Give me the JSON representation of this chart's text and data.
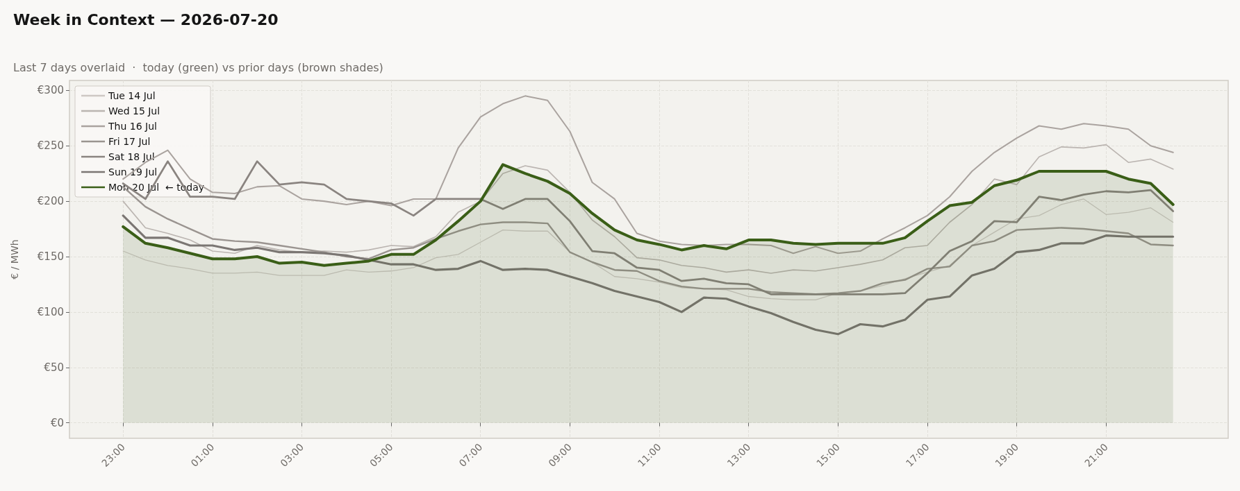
{
  "chart_data": {
    "type": "line",
    "title": "Week in Context — 2026-07-20",
    "subtitle": "Last 7 days overlaid  ·  today (green) vs prior days (brown shades)",
    "ylabel": "€ / MWh",
    "x": [
      "2026-07-19T23:00",
      "2026-07-19T23:30",
      "2026-07-20T00:00",
      "2026-07-20T00:30",
      "2026-07-20T01:00",
      "2026-07-20T01:30",
      "2026-07-20T02:00",
      "2026-07-20T02:30",
      "2026-07-20T03:00",
      "2026-07-20T03:30",
      "2026-07-20T04:00",
      "2026-07-20T04:30",
      "2026-07-20T05:00",
      "2026-07-20T05:30",
      "2026-07-20T06:00",
      "2026-07-20T06:30",
      "2026-07-20T07:00",
      "2026-07-20T07:30",
      "2026-07-20T08:00",
      "2026-07-20T08:30",
      "2026-07-20T09:00",
      "2026-07-20T09:30",
      "2026-07-20T10:00",
      "2026-07-20T10:30",
      "2026-07-20T11:00",
      "2026-07-20T11:30",
      "2026-07-20T12:00",
      "2026-07-20T12:30",
      "2026-07-20T13:00",
      "2026-07-20T13:30",
      "2026-07-20T14:00",
      "2026-07-20T14:30",
      "2026-07-20T15:00",
      "2026-07-20T15:30",
      "2026-07-20T16:00",
      "2026-07-20T16:30",
      "2026-07-20T17:00",
      "2026-07-20T17:30",
      "2026-07-20T18:00",
      "2026-07-20T18:30",
      "2026-07-20T19:00",
      "2026-07-20T19:30",
      "2026-07-20T20:00",
      "2026-07-20T20:30",
      "2026-07-20T21:00",
      "2026-07-20T21:30",
      "2026-07-20T22:00",
      "2026-07-20T22:30"
    ],
    "xlim": [
      "2026-07-19T21:48",
      "2026-07-20T23:44"
    ],
    "xticks": [
      {
        "value": "2026-07-19T23:00",
        "label": "23:00"
      },
      {
        "value": "2026-07-20T01:00",
        "label": "01:00"
      },
      {
        "value": "2026-07-20T03:00",
        "label": "03:00"
      },
      {
        "value": "2026-07-20T05:00",
        "label": "05:00"
      },
      {
        "value": "2026-07-20T07:00",
        "label": "07:00"
      },
      {
        "value": "2026-07-20T09:00",
        "label": "09:00"
      },
      {
        "value": "2026-07-20T11:00",
        "label": "11:00"
      },
      {
        "value": "2026-07-20T13:00",
        "label": "13:00"
      },
      {
        "value": "2026-07-20T15:00",
        "label": "15:00"
      },
      {
        "value": "2026-07-20T17:00",
        "label": "17:00"
      },
      {
        "value": "2026-07-20T19:00",
        "label": "19:00"
      },
      {
        "value": "2026-07-20T21:00",
        "label": "21:00"
      }
    ],
    "ylim": [
      -14,
      309
    ],
    "yticks": [
      {
        "value": 0,
        "label": "€0"
      },
      {
        "value": 50,
        "label": "€50"
      },
      {
        "value": 100,
        "label": "€100"
      },
      {
        "value": 150,
        "label": "€150"
      },
      {
        "value": 200,
        "label": "€200"
      },
      {
        "value": 250,
        "label": "€250"
      },
      {
        "value": 300,
        "label": "€300"
      }
    ],
    "grid": true,
    "legend": "top left",
    "marker": "none",
    "line_style": "solid",
    "series": [
      {
        "name": "Tue 14 Jul",
        "color": "#cdc8c4",
        "values": [
          155,
          147,
          142,
          139,
          135,
          135,
          136,
          133,
          133,
          133,
          138,
          136,
          137,
          140,
          149,
          152,
          163,
          174,
          173,
          173,
          154,
          145,
          132,
          130,
          127,
          122,
          121,
          120,
          114,
          112,
          111,
          111,
          117,
          119,
          124,
          130,
          136,
          142,
          160,
          172,
          184,
          187,
          197,
          202,
          188,
          190,
          194,
          181
        ]
      },
      {
        "name": "Wed 15 Jul",
        "color": "#bbb5b1",
        "values": [
          200,
          176,
          171,
          165,
          155,
          153,
          160,
          156,
          154,
          155,
          154,
          156,
          160,
          159,
          168,
          190,
          200,
          225,
          232,
          228,
          208,
          183,
          168,
          149,
          147,
          142,
          140,
          136,
          138,
          135,
          138,
          137,
          140,
          143,
          147,
          158,
          160,
          181,
          197,
          220,
          215,
          240,
          249,
          248,
          251,
          235,
          238,
          229
        ]
      },
      {
        "name": "Thu 16 Jul",
        "color": "#aaa39f",
        "values": [
          220,
          235,
          246,
          220,
          208,
          207,
          213,
          214,
          202,
          200,
          197,
          200,
          196,
          202,
          202,
          248,
          276,
          288,
          295,
          291,
          263,
          217,
          202,
          171,
          164,
          161,
          160,
          161,
          161,
          160,
          153,
          159,
          153,
          155,
          166,
          176,
          187,
          204,
          227,
          244,
          257,
          268,
          265,
          270,
          268,
          265,
          250,
          244
        ]
      },
      {
        "name": "Fri 17 Jul",
        "color": "#9a9490",
        "values": [
          213,
          195,
          184,
          175,
          166,
          164,
          163,
          160,
          157,
          154,
          150,
          148,
          156,
          158,
          166,
          173,
          179,
          181,
          181,
          180,
          154,
          145,
          138,
          137,
          128,
          123,
          121,
          121,
          121,
          118,
          117,
          116,
          117,
          119,
          126,
          129,
          139,
          141,
          160,
          164,
          174,
          175,
          176,
          175,
          173,
          171,
          161,
          160
        ]
      },
      {
        "name": "Sat 18 Jul",
        "color": "#8a8480",
        "values": [
          216,
          202,
          236,
          204,
          204,
          202,
          236,
          215,
          217,
          215,
          202,
          200,
          198,
          187,
          202,
          202,
          202,
          193,
          202,
          202,
          182,
          155,
          153,
          140,
          138,
          128,
          130,
          126,
          125,
          116,
          116,
          116,
          116,
          116,
          116,
          117,
          135,
          155,
          164,
          182,
          181,
          204,
          201,
          206,
          209,
          208,
          210,
          191
        ]
      },
      {
        "name": "Sun 19 Jul",
        "color": "#7b7673",
        "values": [
          187,
          167,
          167,
          160,
          160,
          156,
          158,
          154,
          154,
          153,
          151,
          147,
          143,
          143,
          138,
          139,
          146,
          138,
          139,
          138,
          132,
          126,
          119,
          114,
          109,
          100,
          113,
          112,
          105,
          99,
          91,
          84,
          80,
          89,
          87,
          93,
          111,
          114,
          133,
          139,
          154,
          156,
          162,
          162,
          169,
          168,
          168,
          168
        ]
      },
      {
        "name": "Mon 20 Jul  ← today",
        "type": "area",
        "color": "#3a5e17",
        "values": [
          177,
          162,
          158,
          153,
          148,
          148,
          150,
          144,
          145,
          142,
          144,
          146,
          152,
          152,
          165,
          182,
          200,
          233,
          225,
          218,
          207,
          189,
          174,
          165,
          161,
          156,
          160,
          157,
          165,
          165,
          162,
          161,
          162,
          162,
          162,
          167,
          182,
          196,
          199,
          214,
          219,
          227,
          227,
          227,
          227,
          220,
          216,
          197
        ]
      }
    ]
  }
}
